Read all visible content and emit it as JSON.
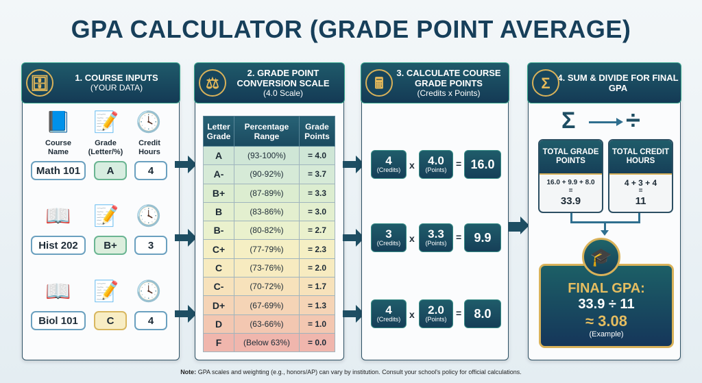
{
  "title": "GPA CALCULATOR (GRADE POINT AVERAGE)",
  "colors": {
    "header": "#173f5a",
    "accent_gold": "#d9b25a",
    "panel_border": "#2c4f63"
  },
  "panel1": {
    "title": "1. COURSE INPUTS",
    "subtitle": "(YOUR DATA)",
    "icon": "database-pencil-icon",
    "labels": {
      "course": "Course Name",
      "grade": "Grade (Letter/%)",
      "credit": "Credit Hours"
    },
    "courses": [
      {
        "name": "Math 101",
        "grade": "A",
        "credits": "4"
      },
      {
        "name": "Hist 202",
        "grade": "B+",
        "credits": "3"
      },
      {
        "name": "Biol 101",
        "grade": "C",
        "credits": "4"
      }
    ]
  },
  "panel2": {
    "title": "2. GRADE POINT CONVERSION SCALE",
    "subtitle": "(4.0 Scale)",
    "icon": "scales-icon",
    "headers": [
      "Letter Grade",
      "Percentage Range",
      "Grade Points"
    ],
    "rows": [
      [
        "A",
        "(93-100%)",
        "= 4.0"
      ],
      [
        "A-",
        "(90-92%)",
        "= 3.7"
      ],
      [
        "B+",
        "(87-89%)",
        "= 3.3"
      ],
      [
        "B",
        "(83-86%)",
        "= 3.0"
      ],
      [
        "B-",
        "(80-82%)",
        "= 2.7"
      ],
      [
        "C+",
        "(77-79%)",
        "= 2.3"
      ],
      [
        "C",
        "(73-76%)",
        "= 2.0"
      ],
      [
        "C-",
        "(70-72%)",
        "= 1.7"
      ],
      [
        "D+",
        "(67-69%)",
        "= 1.3"
      ],
      [
        "D",
        "(63-66%)",
        "= 1.0"
      ],
      [
        "F",
        "(Below 63%)",
        "= 0.0"
      ]
    ],
    "row_colors": [
      "#cfe6d6",
      "#d6ead7",
      "#dcedd0",
      "#e3efcf",
      "#eaf1cd",
      "#f5efc4",
      "#f7ebc0",
      "#f7e2bb",
      "#f5d4b6",
      "#f3c7b1",
      "#f0b6ad"
    ]
  },
  "panel3": {
    "title": "3. CALCULATE COURSE GRADE POINTS",
    "subtitle": "(Credits x Points)",
    "icon": "calculator-icon",
    "credits_label": "(Credits)",
    "points_label": "(Points)",
    "times": "x",
    "equals": "=",
    "rows": [
      {
        "credits": "4",
        "points": "4.0",
        "result": "16.0"
      },
      {
        "credits": "3",
        "points": "3.3",
        "result": "9.9"
      },
      {
        "credits": "4",
        "points": "2.0",
        "result": "8.0"
      }
    ]
  },
  "panel4": {
    "title": "4. SUM & DIVIDE FOR FINAL GPA",
    "icon": "sigma-icon",
    "total_points": {
      "label": "TOTAL GRADE POINTS",
      "expr": "16.0 + 9.9 + 8.0",
      "eq": "=",
      "result": "33.9"
    },
    "total_credits": {
      "label": "TOTAL CREDIT HOURS",
      "expr": "4 + 3 + 4",
      "eq": "=",
      "result": "11"
    },
    "final": {
      "label": "FINAL GPA:",
      "expr": "33.9 ÷ 11",
      "result": "≈ 3.08",
      "note": "(Example)"
    }
  },
  "footnote": {
    "bold": "Note:",
    "text": " GPA scales and weighting (e.g., honors/AP) can vary by institution. Consult your school's policy for official calculations."
  }
}
